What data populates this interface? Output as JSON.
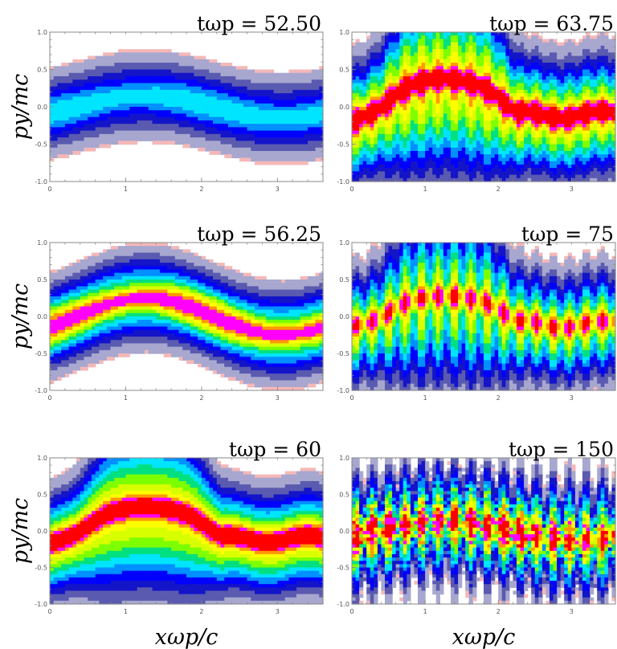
{
  "colorscale": [
    "#ffffff",
    "#f4b8b8",
    "#a7a7cf",
    "#5a5ab0",
    "#1414c8",
    "#0000ff",
    "#0090ff",
    "#00e5ff",
    "#00e080",
    "#7dff00",
    "#d8ff00",
    "#ffff00",
    "#ff9900",
    "#ff00ff",
    "#ff0000"
  ],
  "chart_data": [
    {
      "type": "heatmap",
      "title": "tωp = 52.50",
      "ylabel": "py/mc",
      "xlabel": "",
      "xlim": [
        0,
        3.6
      ],
      "ylim": [
        -1.0,
        1.0
      ],
      "x_ticks": [
        "0",
        "1",
        "2",
        "3"
      ],
      "y_ticks": [
        "1.0",
        "0.5",
        "0.0",
        "-0.5",
        "-1.0"
      ],
      "kind": "smooth",
      "width": 0.58,
      "peak": 0.55,
      "amplitude": 0.15,
      "stripes": 0
    },
    {
      "type": "heatmap",
      "title": "tωp = 63.75",
      "ylabel": "",
      "xlabel": "",
      "xlim": [
        0,
        3.6
      ],
      "ylim": [
        -1.0,
        1.0
      ],
      "x_ticks": [
        "0",
        "1",
        "2",
        "3"
      ],
      "y_ticks": [
        "1.0",
        "0.5",
        "0.0",
        "-0.5",
        "-1.0"
      ],
      "kind": "trapped",
      "width": 0.85,
      "peak": 1.0,
      "amplitude": 0.25,
      "stripes": 1
    },
    {
      "type": "heatmap",
      "title": "tωp = 56.25",
      "ylabel": "py/mc",
      "xlabel": "",
      "xlim": [
        0,
        3.6
      ],
      "ylim": [
        -1.0,
        1.0
      ],
      "x_ticks": [
        "0",
        "1",
        "2",
        "3"
      ],
      "y_ticks": [
        "1.0",
        "0.5",
        "0.0",
        "-0.5",
        "-1.0"
      ],
      "kind": "smooth",
      "width": 0.62,
      "peak": 0.92,
      "amplitude": 0.25,
      "stripes": 0
    },
    {
      "type": "heatmap",
      "title": "tωp = 75",
      "ylabel": "",
      "xlabel": "",
      "xlim": [
        0,
        3.6
      ],
      "ylim": [
        -1.0,
        1.0
      ],
      "x_ticks": [
        "0",
        "1",
        "2",
        "3"
      ],
      "y_ticks": [
        "1.0",
        "0.5",
        "0.0",
        "-0.5",
        "-1.0"
      ],
      "kind": "trapped",
      "width": 0.8,
      "peak": 0.85,
      "amplitude": 0.15,
      "stripes": 2
    },
    {
      "type": "heatmap",
      "title": "tωp = 60",
      "ylabel": "py/mc",
      "xlabel": "xωp/c",
      "xlim": [
        0,
        3.6
      ],
      "ylim": [
        -1.0,
        1.0
      ],
      "x_ticks": [
        "0",
        "1",
        "2",
        "3"
      ],
      "y_ticks": [
        "1.0",
        "0.5",
        "0.0",
        "-0.5",
        "-1.0"
      ],
      "kind": "plateau",
      "width": 0.75,
      "peak": 1.0,
      "amplitude": 0.2,
      "stripes": 0
    },
    {
      "type": "heatmap",
      "title": "tωp = 150",
      "ylabel": "",
      "xlabel": "xωp/c",
      "xlim": [
        0,
        3.6
      ],
      "ylim": [
        -1.0,
        1.0
      ],
      "x_ticks": [
        "0",
        "1",
        "2",
        "3"
      ],
      "y_ticks": [
        "1.0",
        "0.5",
        "0.0",
        "-0.5",
        "-1.0"
      ],
      "kind": "turbulent",
      "width": 0.8,
      "peak": 0.9,
      "amplitude": 0.12,
      "stripes": 3
    }
  ]
}
